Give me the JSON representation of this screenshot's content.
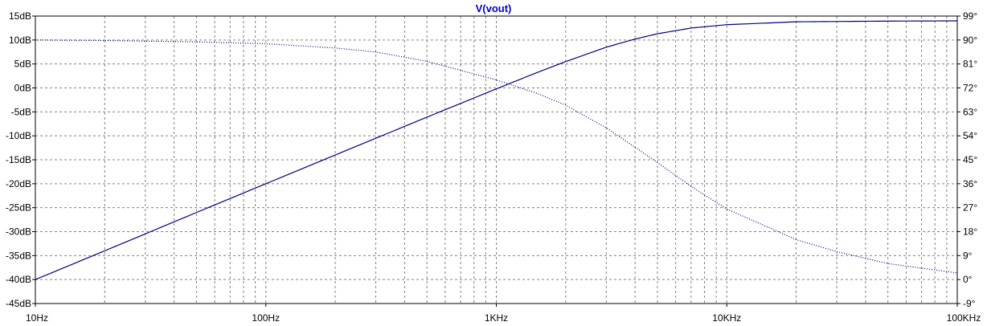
{
  "chart_data": {
    "type": "line",
    "title": "V(vout)",
    "x_scale": "log",
    "x_range": [
      10,
      100000
    ],
    "x_ticks": [
      {
        "value": 10,
        "label": "10Hz"
      },
      {
        "value": 100,
        "label": "100Hz"
      },
      {
        "value": 1000,
        "label": "1KHz"
      },
      {
        "value": 10000,
        "label": "10KHz"
      },
      {
        "value": 100000,
        "label": "100KHz"
      }
    ],
    "y_left": {
      "unit": "dB",
      "range": [
        -45,
        15
      ],
      "ticks": [
        {
          "value": 15,
          "label": "15dB"
        },
        {
          "value": 10,
          "label": "10dB"
        },
        {
          "value": 5,
          "label": "5dB"
        },
        {
          "value": 0,
          "label": "0dB"
        },
        {
          "value": -5,
          "label": "-5dB"
        },
        {
          "value": -10,
          "label": "-10dB"
        },
        {
          "value": -15,
          "label": "-15dB"
        },
        {
          "value": -20,
          "label": "-20dB"
        },
        {
          "value": -25,
          "label": "-25dB"
        },
        {
          "value": -30,
          "label": "-30dB"
        },
        {
          "value": -35,
          "label": "-35dB"
        },
        {
          "value": -40,
          "label": "-40dB"
        },
        {
          "value": -45,
          "label": "-45dB"
        }
      ]
    },
    "y_right": {
      "unit": "°",
      "range": [
        -9,
        99
      ],
      "ticks": [
        {
          "value": 99,
          "label": "99°"
        },
        {
          "value": 90,
          "label": "90°"
        },
        {
          "value": 81,
          "label": "81°"
        },
        {
          "value": 72,
          "label": "72°"
        },
        {
          "value": 63,
          "label": "63°"
        },
        {
          "value": 54,
          "label": "54°"
        },
        {
          "value": 45,
          "label": "45°"
        },
        {
          "value": 36,
          "label": "36°"
        },
        {
          "value": 27,
          "label": "27°"
        },
        {
          "value": 18,
          "label": "18°"
        },
        {
          "value": 9,
          "label": "9°"
        },
        {
          "value": 0,
          "label": "0°"
        },
        {
          "value": -9,
          "label": "-9°"
        }
      ]
    },
    "grid": "dashed",
    "series": [
      {
        "axis": "left",
        "style": "solid",
        "color": "#000080",
        "points": [
          {
            "x": 10,
            "y": -40.0
          },
          {
            "x": 20,
            "y": -34.0
          },
          {
            "x": 50,
            "y": -26.0
          },
          {
            "x": 100,
            "y": -20.0
          },
          {
            "x": 200,
            "y": -14.0
          },
          {
            "x": 500,
            "y": -6.1
          },
          {
            "x": 1000,
            "y": -0.2
          },
          {
            "x": 1500,
            "y": 3.2
          },
          {
            "x": 2000,
            "y": 5.5
          },
          {
            "x": 3000,
            "y": 8.5
          },
          {
            "x": 4000,
            "y": 10.2
          },
          {
            "x": 5000,
            "y": 11.3
          },
          {
            "x": 7000,
            "y": 12.5
          },
          {
            "x": 10000,
            "y": 13.2
          },
          {
            "x": 20000,
            "y": 13.8
          },
          {
            "x": 50000,
            "y": 13.95
          },
          {
            "x": 100000,
            "y": 14.0
          }
        ]
      },
      {
        "axis": "right",
        "style": "dotted",
        "color": "#000080",
        "points": [
          {
            "x": 10,
            "y": 90.0
          },
          {
            "x": 20,
            "y": 89.8
          },
          {
            "x": 50,
            "y": 89.3
          },
          {
            "x": 100,
            "y": 88.6
          },
          {
            "x": 200,
            "y": 87.0
          },
          {
            "x": 300,
            "y": 85.5
          },
          {
            "x": 500,
            "y": 82.0
          },
          {
            "x": 1000,
            "y": 75.0
          },
          {
            "x": 1500,
            "y": 70.0
          },
          {
            "x": 2000,
            "y": 65.5
          },
          {
            "x": 3000,
            "y": 57.0
          },
          {
            "x": 5000,
            "y": 44.0
          },
          {
            "x": 7000,
            "y": 35.0
          },
          {
            "x": 10000,
            "y": 26.5
          },
          {
            "x": 20000,
            "y": 15.0
          },
          {
            "x": 30000,
            "y": 10.5
          },
          {
            "x": 50000,
            "y": 6.0
          },
          {
            "x": 100000,
            "y": 2.5
          }
        ]
      }
    ]
  }
}
